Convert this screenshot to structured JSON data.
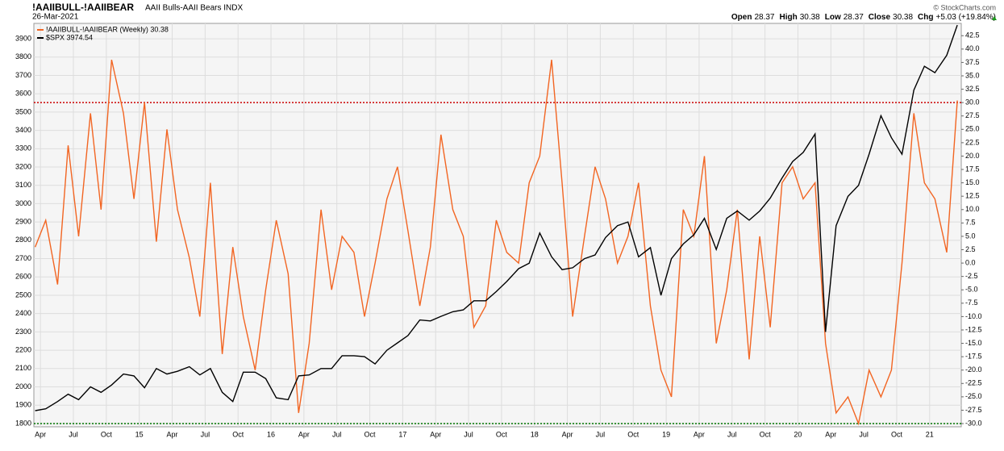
{
  "header": {
    "symbol": "!AAIIBULL-!AAIIBEAR",
    "description": "AAII Bulls-AAII Bears INDX",
    "date": "26-Mar-2021",
    "copyright": "© StockCharts.com",
    "quote": [
      {
        "label": "Open",
        "value": "28.37"
      },
      {
        "label": "High",
        "value": "30.38"
      },
      {
        "label": "Low",
        "value": "28.37"
      },
      {
        "label": "Close",
        "value": "30.38"
      },
      {
        "label": "Chg",
        "value": "+5.03 (+19.84%)"
      }
    ]
  },
  "chart_data": {
    "type": "line",
    "x": [
      2014.21,
      2014.29,
      2014.38,
      2014.46,
      2014.54,
      2014.63,
      2014.71,
      2014.79,
      2014.88,
      2014.96,
      2015.04,
      2015.13,
      2015.21,
      2015.29,
      2015.38,
      2015.46,
      2015.54,
      2015.63,
      2015.71,
      2015.79,
      2015.88,
      2015.96,
      2016.04,
      2016.13,
      2016.21,
      2016.29,
      2016.38,
      2016.46,
      2016.54,
      2016.63,
      2016.71,
      2016.79,
      2016.88,
      2016.96,
      2017.04,
      2017.13,
      2017.21,
      2017.29,
      2017.38,
      2017.46,
      2017.54,
      2017.63,
      2017.71,
      2017.79,
      2017.88,
      2017.96,
      2018.04,
      2018.13,
      2018.21,
      2018.29,
      2018.38,
      2018.46,
      2018.54,
      2018.63,
      2018.71,
      2018.79,
      2018.88,
      2018.96,
      2019.04,
      2019.13,
      2019.21,
      2019.29,
      2019.38,
      2019.46,
      2019.54,
      2019.63,
      2019.71,
      2019.79,
      2019.88,
      2019.96,
      2020.04,
      2020.13,
      2020.21,
      2020.29,
      2020.38,
      2020.46,
      2020.54,
      2020.63,
      2020.71,
      2020.79,
      2020.88,
      2020.96,
      2021.04,
      2021.13,
      2021.21
    ],
    "series": [
      {
        "name": "!AAIIBULL-!AAIIBEAR (Weekly) 30.38",
        "color": "#f26522",
        "axis": "y2",
        "values": [
          3,
          8,
          -4,
          22,
          5,
          28,
          10,
          38,
          28,
          12,
          30,
          4,
          25,
          10,
          1,
          -10,
          15,
          -17,
          3,
          -10,
          -20,
          -5,
          8,
          -2,
          -28,
          -15,
          10,
          -5,
          5,
          2,
          -10,
          0,
          12,
          18,
          6,
          -8,
          3,
          24,
          10,
          5,
          -12,
          -8,
          8,
          2,
          0,
          15,
          20,
          38,
          15,
          -10,
          5,
          18,
          12,
          0,
          5,
          15,
          -8,
          -20,
          -25,
          10,
          5,
          20,
          -15,
          -5,
          10,
          -18,
          5,
          -12,
          15,
          18,
          12,
          15,
          -15,
          -28,
          -25,
          -30,
          -20,
          -25,
          -20,
          0,
          28,
          15,
          12,
          2,
          30.38
        ]
      },
      {
        "name": "$SPX 3974.54",
        "color": "#000000",
        "axis": "y",
        "values": [
          1870,
          1880,
          1920,
          1960,
          1930,
          2000,
          1970,
          2010,
          2070,
          2060,
          1995,
          2100,
          2070,
          2085,
          2110,
          2065,
          2100,
          1970,
          1920,
          2080,
          2080,
          2045,
          1940,
          1930,
          2060,
          2065,
          2100,
          2100,
          2170,
          2170,
          2165,
          2125,
          2200,
          2240,
          2280,
          2365,
          2360,
          2385,
          2410,
          2420,
          2470,
          2470,
          2520,
          2575,
          2645,
          2675,
          2840,
          2710,
          2640,
          2650,
          2700,
          2720,
          2815,
          2880,
          2900,
          2710,
          2760,
          2500,
          2700,
          2780,
          2830,
          2920,
          2750,
          2920,
          2960,
          2910,
          2960,
          3030,
          3140,
          3230,
          3280,
          3380,
          2300,
          2880,
          3040,
          3100,
          3270,
          3480,
          3360,
          3270,
          3620,
          3750,
          3715,
          3810,
          3974.54
        ]
      }
    ],
    "xlim": [
      2014.2,
      2021.24
    ],
    "xticks": [
      {
        "value": 2014.25,
        "label": "Apr"
      },
      {
        "value": 2014.5,
        "label": "Jul"
      },
      {
        "value": 2014.75,
        "label": "Oct"
      },
      {
        "value": 2015,
        "label": "15"
      },
      {
        "value": 2015.25,
        "label": "Apr"
      },
      {
        "value": 2015.5,
        "label": "Jul"
      },
      {
        "value": 2015.75,
        "label": "Oct"
      },
      {
        "value": 2016,
        "label": "16"
      },
      {
        "value": 2016.25,
        "label": "Apr"
      },
      {
        "value": 2016.5,
        "label": "Jul"
      },
      {
        "value": 2016.75,
        "label": "Oct"
      },
      {
        "value": 2017,
        "label": "17"
      },
      {
        "value": 2017.25,
        "label": "Apr"
      },
      {
        "value": 2017.5,
        "label": "Jul"
      },
      {
        "value": 2017.75,
        "label": "Oct"
      },
      {
        "value": 2018,
        "label": "18"
      },
      {
        "value": 2018.25,
        "label": "Apr"
      },
      {
        "value": 2018.5,
        "label": "Jul"
      },
      {
        "value": 2018.75,
        "label": "Oct"
      },
      {
        "value": 2019,
        "label": "19"
      },
      {
        "value": 2019.25,
        "label": "Apr"
      },
      {
        "value": 2019.5,
        "label": "Jul"
      },
      {
        "value": 2019.75,
        "label": "Oct"
      },
      {
        "value": 2020,
        "label": "20"
      },
      {
        "value": 2020.25,
        "label": "Apr"
      },
      {
        "value": 2020.5,
        "label": "Jul"
      },
      {
        "value": 2020.75,
        "label": "Oct"
      },
      {
        "value": 2021,
        "label": "21"
      }
    ],
    "ylim": [
      1782,
      3984
    ],
    "yticks": [
      1800,
      1900,
      2000,
      2100,
      2200,
      2300,
      2400,
      2500,
      2600,
      2700,
      2800,
      2900,
      3000,
      3100,
      3200,
      3300,
      3400,
      3500,
      3600,
      3700,
      3800,
      3900
    ],
    "y2lim": [
      -30.6,
      44.8
    ],
    "y2ticks": [
      42.5,
      {
        "value": 40,
        "label": "40.0"
      },
      37.5,
      {
        "value": 35,
        "label": "35.0"
      },
      32.5,
      {
        "value": 30,
        "label": "30.0"
      },
      27.5,
      {
        "value": 25,
        "label": "25.0"
      },
      22.5,
      {
        "value": 20,
        "label": "20.0"
      },
      17.5,
      {
        "value": 15,
        "label": "15.0"
      },
      12.5,
      {
        "value": 10,
        "label": "10.0"
      },
      7.5,
      {
        "value": 5,
        "label": "5.0"
      },
      2.5,
      {
        "value": 0,
        "label": "0.0"
      },
      -2.5,
      {
        "value": -5,
        "label": "-5.0"
      },
      -7.5,
      {
        "value": -10,
        "label": "-10.0"
      },
      -12.5,
      {
        "value": -15,
        "label": "-15.0"
      },
      -17.5,
      {
        "value": -20,
        "label": "-20.0"
      },
      -22.5,
      {
        "value": -25,
        "label": "-25.0"
      },
      -27.5,
      {
        "value": -30,
        "label": "-30.0"
      }
    ],
    "hlines": [
      {
        "value": 30,
        "axis": "y2",
        "color": "#cc0000"
      },
      {
        "value": -30,
        "axis": "y2",
        "color": "#007700"
      }
    ],
    "grid": true
  }
}
